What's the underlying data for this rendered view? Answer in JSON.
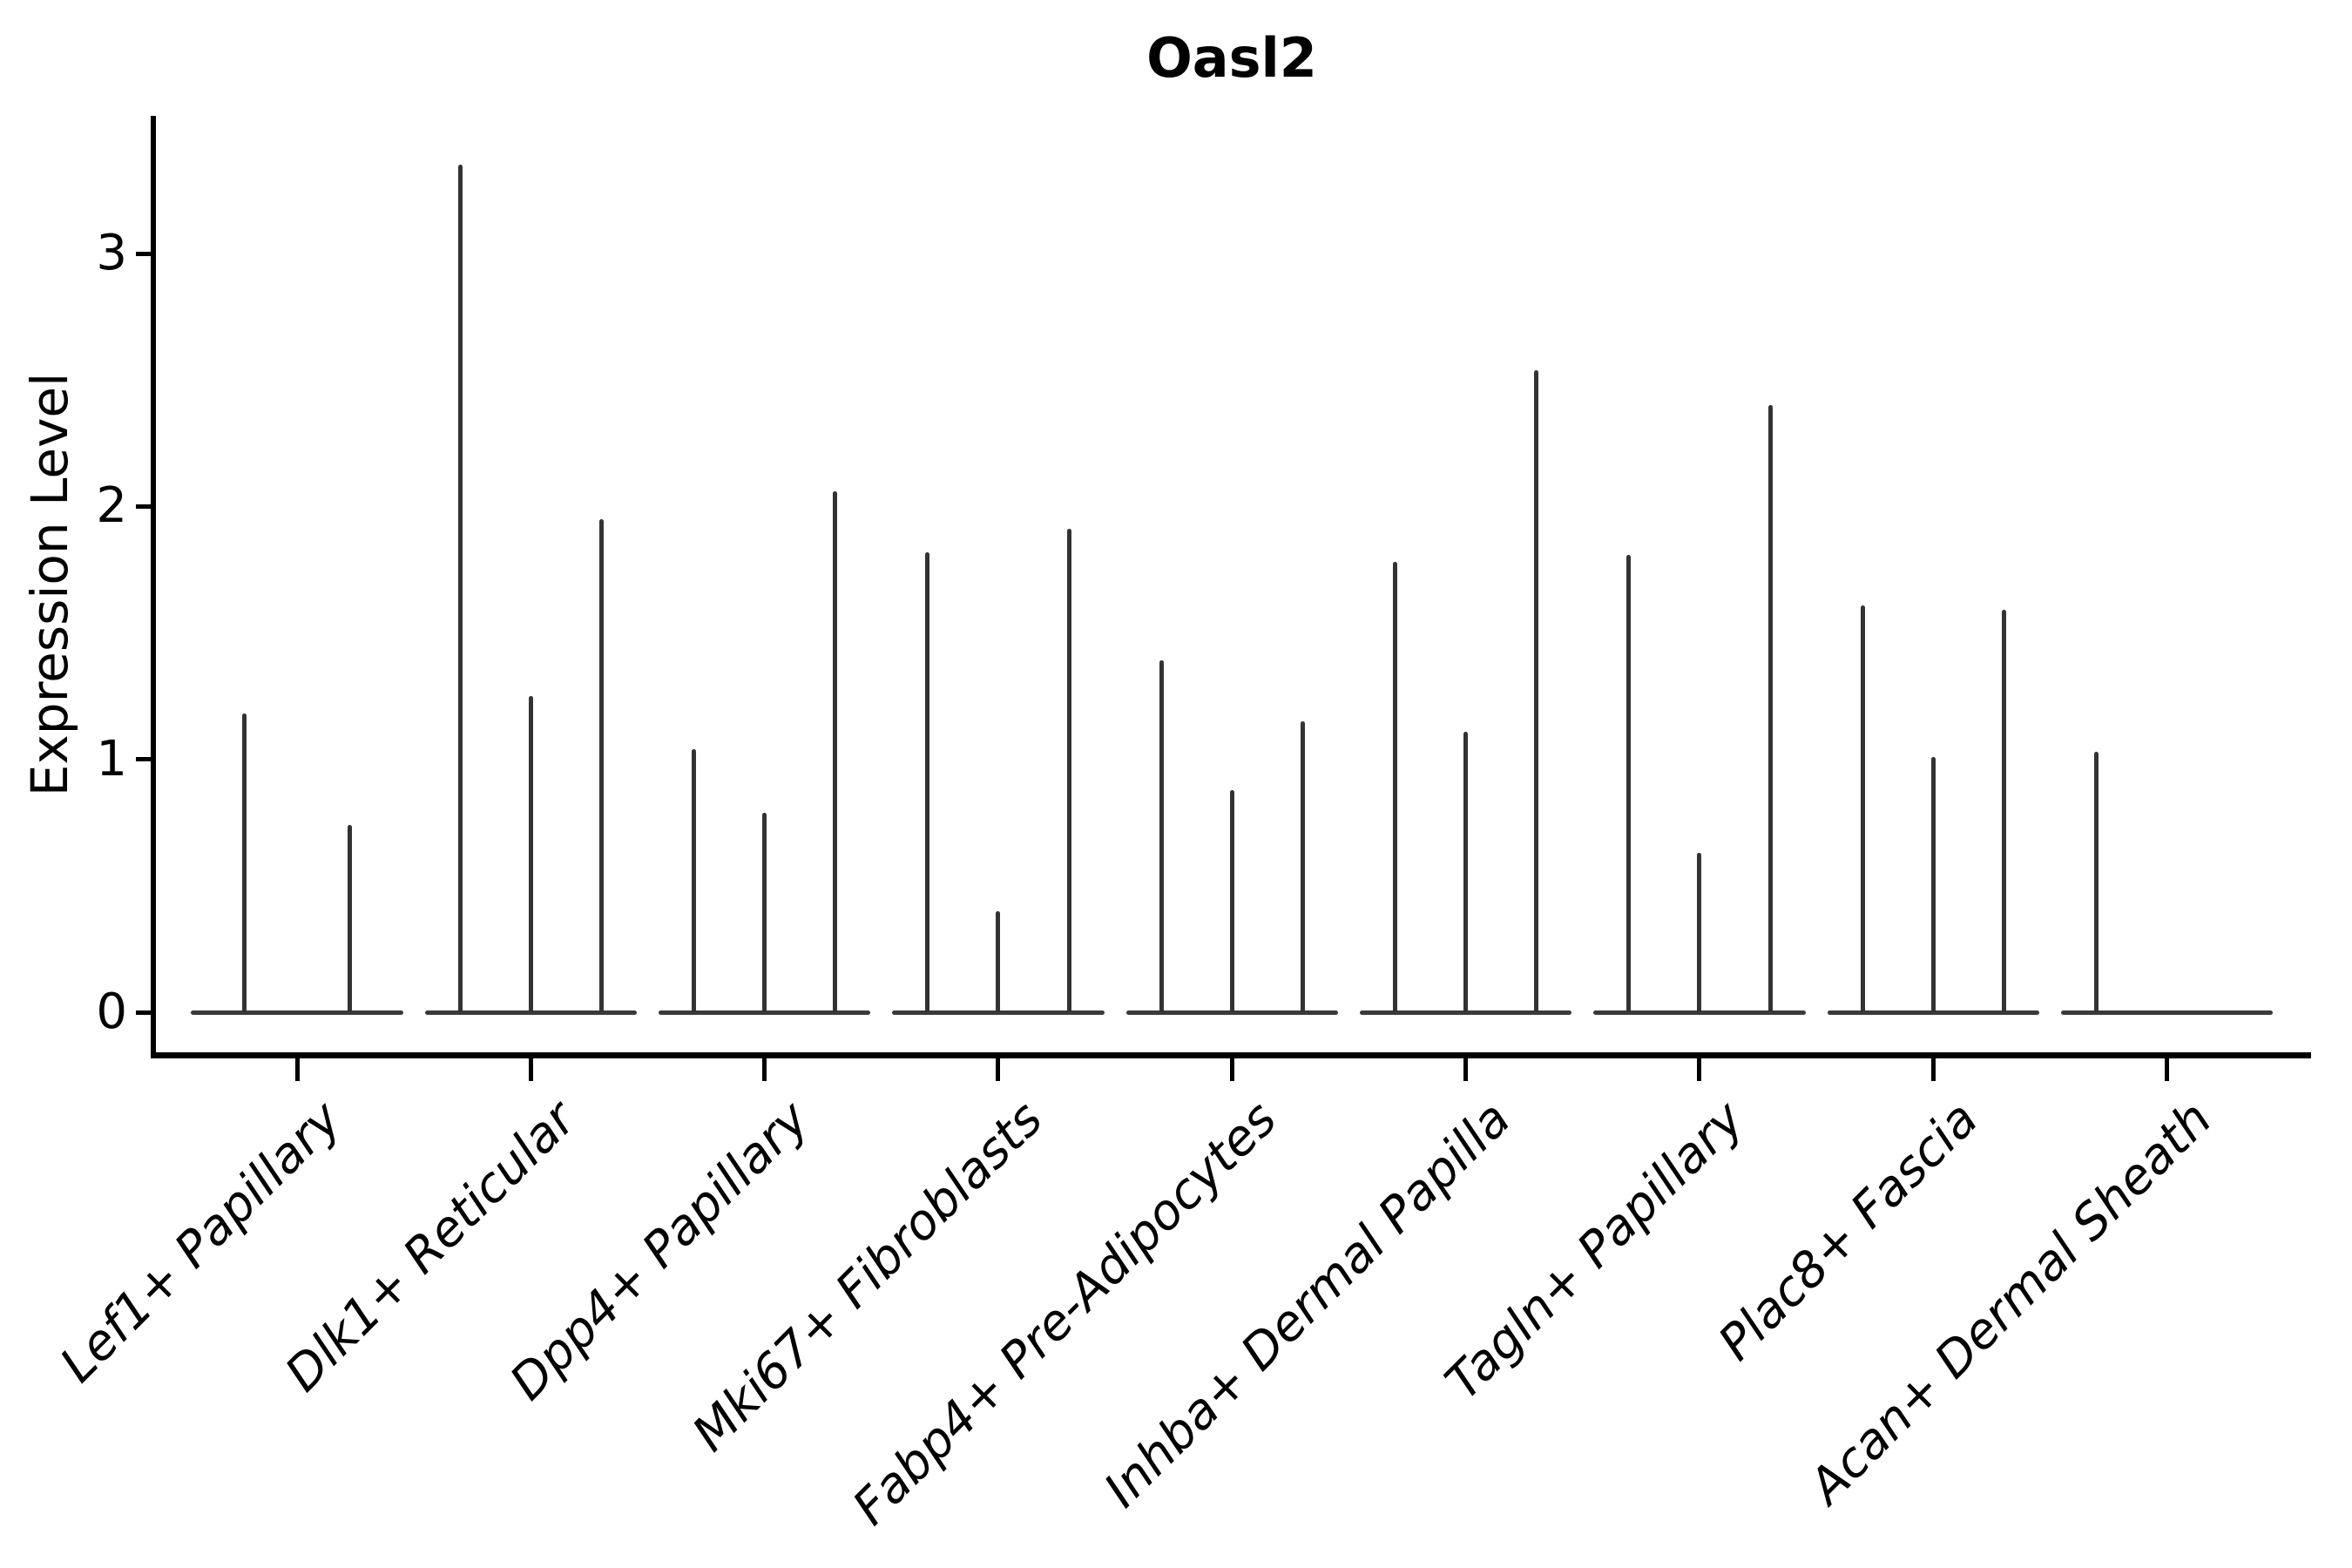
{
  "chart_data": {
    "type": "violin",
    "title": "Oasl2",
    "xlabel": "",
    "ylabel": "Expression Level",
    "yticks": [
      0,
      1,
      2,
      3
    ],
    "ylim": [
      -0.17,
      3.55
    ],
    "grid": false,
    "legend": "none",
    "line_color": "#333333",
    "axis_color": "#000000",
    "categories": [
      "Lef1+ Papillary",
      "Dlk1+ Reticular",
      "Dpp4+ Papillary",
      "Mki67+ Fibroblasts",
      "Fabp4+ Pre-Adipocytes",
      "Inhba+ Dermal Papilla",
      "Tagln+ Papillary",
      "Plac8+ Fascia",
      "Acan+ Dermal Sheath"
    ],
    "groups": [
      {
        "label": "Lef1+ Papillary",
        "violin_max_values": [
          1.18,
          0.74
        ]
      },
      {
        "label": "Dlk1+ Reticular",
        "violin_max_values": [
          3.35,
          1.25,
          1.95
        ]
      },
      {
        "label": "Dpp4+ Papillary",
        "violin_max_values": [
          1.04,
          0.79,
          2.06
        ]
      },
      {
        "label": "Mki67+ Fibroblasts",
        "violin_max_values": [
          1.82,
          0.4,
          1.91
        ]
      },
      {
        "label": "Fabp4+ Pre-Adipocytes",
        "violin_max_values": [
          1.39,
          0.88,
          1.15
        ]
      },
      {
        "label": "Inhba+ Dermal Papilla",
        "violin_max_values": [
          1.78,
          1.11,
          2.54
        ]
      },
      {
        "label": "Tagln+ Papillary",
        "violin_max_values": [
          1.81,
          0.63,
          2.4
        ]
      },
      {
        "label": "Plac8+ Fascia",
        "violin_max_values": [
          1.61,
          1.01,
          1.59
        ]
      },
      {
        "label": "Acan+ Dermal Sheath",
        "violin_max_values": [
          1.03,
          0,
          0
        ]
      }
    ]
  }
}
